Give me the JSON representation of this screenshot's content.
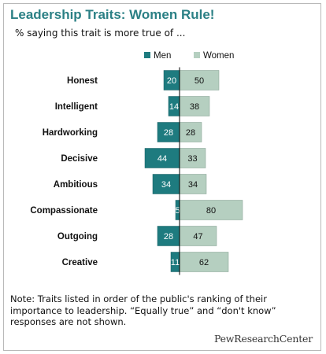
{
  "title": "Leadership Traits: Women Rule!",
  "subtitle": "% saying this trait is more true of ...",
  "note": "Note: Traits listed in order of the public's ranking of their importance to leadership. “Equally true” and “don't know” responses are not shown.",
  "logo_text": "PewResearchCenter",
  "colors": {
    "men": "#1e7b7f",
    "women": "#b5cfc0",
    "title": "#2b8085",
    "axis": "#000000"
  },
  "chart_data": {
    "type": "bar",
    "orientation": "horizontal-diverging",
    "categories": [
      "Honest",
      "Intelligent",
      "Hardworking",
      "Decisive",
      "Ambitious",
      "Compassionate",
      "Outgoing",
      "Creative"
    ],
    "series": [
      {
        "name": "Men",
        "values": [
          20,
          14,
          28,
          44,
          34,
          5,
          28,
          11
        ]
      },
      {
        "name": "Women",
        "values": [
          50,
          38,
          28,
          33,
          34,
          80,
          47,
          62
        ]
      }
    ],
    "legend": "top",
    "grid": false
  }
}
